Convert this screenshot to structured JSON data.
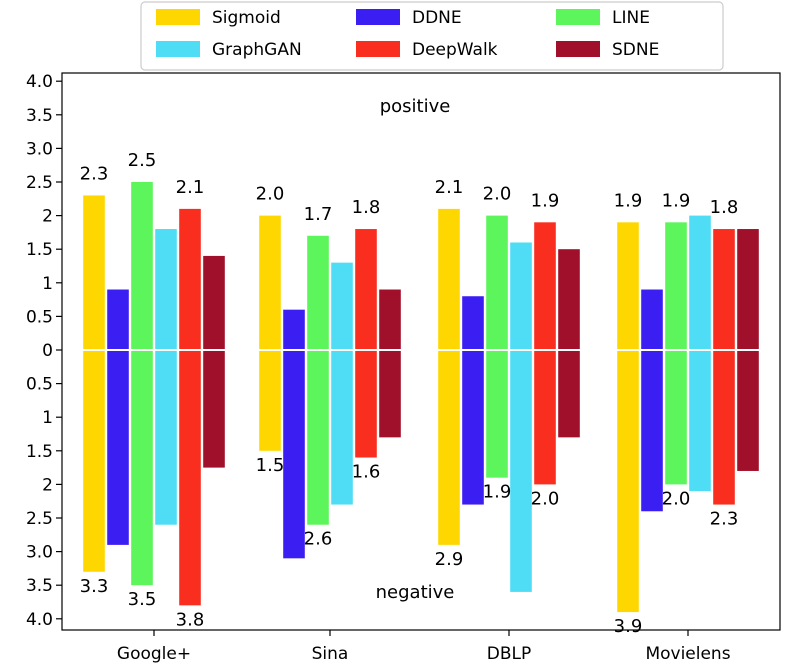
{
  "chart_data": {
    "type": "bar",
    "categories": [
      "Google+",
      "Sina",
      "DBLP",
      "Movielens"
    ],
    "series": [
      {
        "name": "Sigmoid",
        "color": "#FFD700",
        "positive": [
          2.3,
          2.0,
          2.1,
          1.9
        ],
        "negative": [
          3.3,
          1.5,
          2.9,
          3.9
        ]
      },
      {
        "name": "DDNE",
        "color": "#3B1EF2",
        "positive": [
          0.9,
          0.6,
          0.8,
          0.9
        ],
        "negative": [
          2.9,
          3.1,
          2.3,
          2.4
        ]
      },
      {
        "name": "LINE",
        "color": "#5CF55C",
        "positive": [
          2.5,
          1.7,
          2.0,
          1.9
        ],
        "negative": [
          3.5,
          2.6,
          1.9,
          2.0
        ]
      },
      {
        "name": "GraphGAN",
        "color": "#4FDDF5",
        "positive": [
          1.8,
          1.3,
          1.6,
          2.0
        ],
        "negative": [
          2.6,
          2.3,
          3.6,
          2.1
        ]
      },
      {
        "name": "DeepWalk",
        "color": "#FA2E1E",
        "positive": [
          2.1,
          1.8,
          1.9,
          1.8
        ],
        "negative": [
          3.8,
          1.6,
          2.0,
          2.3
        ]
      },
      {
        "name": "SDNE",
        "color": "#A0102A",
        "positive": [
          1.4,
          0.9,
          1.5,
          1.8
        ],
        "negative": [
          1.75,
          1.3,
          1.3,
          1.8
        ]
      }
    ],
    "data_labels": [
      {
        "series": "Sigmoid",
        "category": "Google+",
        "side": "positive",
        "text": "2.3"
      },
      {
        "series": "LINE",
        "category": "Google+",
        "side": "positive",
        "text": "2.5"
      },
      {
        "series": "DeepWalk",
        "category": "Google+",
        "side": "positive",
        "text": "2.1"
      },
      {
        "series": "Sigmoid",
        "category": "Google+",
        "side": "negative",
        "text": "3.3"
      },
      {
        "series": "LINE",
        "category": "Google+",
        "side": "negative",
        "text": "3.5"
      },
      {
        "series": "DeepWalk",
        "category": "Google+",
        "side": "negative",
        "text": "3.8"
      },
      {
        "series": "Sigmoid",
        "category": "Sina",
        "side": "positive",
        "text": "2.0"
      },
      {
        "series": "LINE",
        "category": "Sina",
        "side": "positive",
        "text": "1.7"
      },
      {
        "series": "DeepWalk",
        "category": "Sina",
        "side": "positive",
        "text": "1.8"
      },
      {
        "series": "Sigmoid",
        "category": "Sina",
        "side": "negative",
        "text": "1.5"
      },
      {
        "series": "LINE",
        "category": "Sina",
        "side": "negative",
        "text": "2.6"
      },
      {
        "series": "DeepWalk",
        "category": "Sina",
        "side": "negative",
        "text": "1.6"
      },
      {
        "series": "Sigmoid",
        "category": "DBLP",
        "side": "positive",
        "text": "2.1"
      },
      {
        "series": "LINE",
        "category": "DBLP",
        "side": "positive",
        "text": "2.0"
      },
      {
        "series": "DeepWalk",
        "category": "DBLP",
        "side": "positive",
        "text": "1.9"
      },
      {
        "series": "Sigmoid",
        "category": "DBLP",
        "side": "negative",
        "text": "2.9"
      },
      {
        "series": "LINE",
        "category": "DBLP",
        "side": "negative",
        "text": "1.9"
      },
      {
        "series": "DeepWalk",
        "category": "DBLP",
        "side": "negative",
        "text": "2.0"
      },
      {
        "series": "Sigmoid",
        "category": "Movielens",
        "side": "positive",
        "text": "1.9"
      },
      {
        "series": "LINE",
        "category": "Movielens",
        "side": "positive",
        "text": "1.9"
      },
      {
        "series": "DeepWalk",
        "category": "Movielens",
        "side": "positive",
        "text": "1.8"
      },
      {
        "series": "Sigmoid",
        "category": "Movielens",
        "side": "negative",
        "text": "3.9"
      },
      {
        "series": "LINE",
        "category": "Movielens",
        "side": "negative",
        "text": "2.0"
      },
      {
        "series": "DeepWalk",
        "category": "Movielens",
        "side": "negative",
        "text": "2.3"
      }
    ],
    "yticks": [
      {
        "value": 4.0,
        "label": "4.0"
      },
      {
        "value": 3.5,
        "label": "3.5"
      },
      {
        "value": 3.0,
        "label": "3.0"
      },
      {
        "value": 2.5,
        "label": "2.5"
      },
      {
        "value": 2.0,
        "label": "2"
      },
      {
        "value": 1.5,
        "label": "1.5"
      },
      {
        "value": 1.0,
        "label": "1"
      },
      {
        "value": 0.5,
        "label": "0.5"
      },
      {
        "value": 0,
        "label": "0"
      },
      {
        "value": -0.5,
        "label": "0.5"
      },
      {
        "value": -1.0,
        "label": "1"
      },
      {
        "value": -1.5,
        "label": "1.5"
      },
      {
        "value": -2.0,
        "label": "2"
      },
      {
        "value": -2.5,
        "label": "2.5"
      },
      {
        "value": -3.0,
        "label": "3.0"
      },
      {
        "value": -3.5,
        "label": "3.5"
      },
      {
        "value": -4.0,
        "label": "4.0"
      }
    ],
    "ylim": [
      -4.1,
      4.1
    ],
    "annotations": {
      "positive": "positive",
      "negative": "negative"
    },
    "legend_location": "top-center",
    "grid": false,
    "title": "",
    "xlabel": "",
    "ylabel": ""
  }
}
